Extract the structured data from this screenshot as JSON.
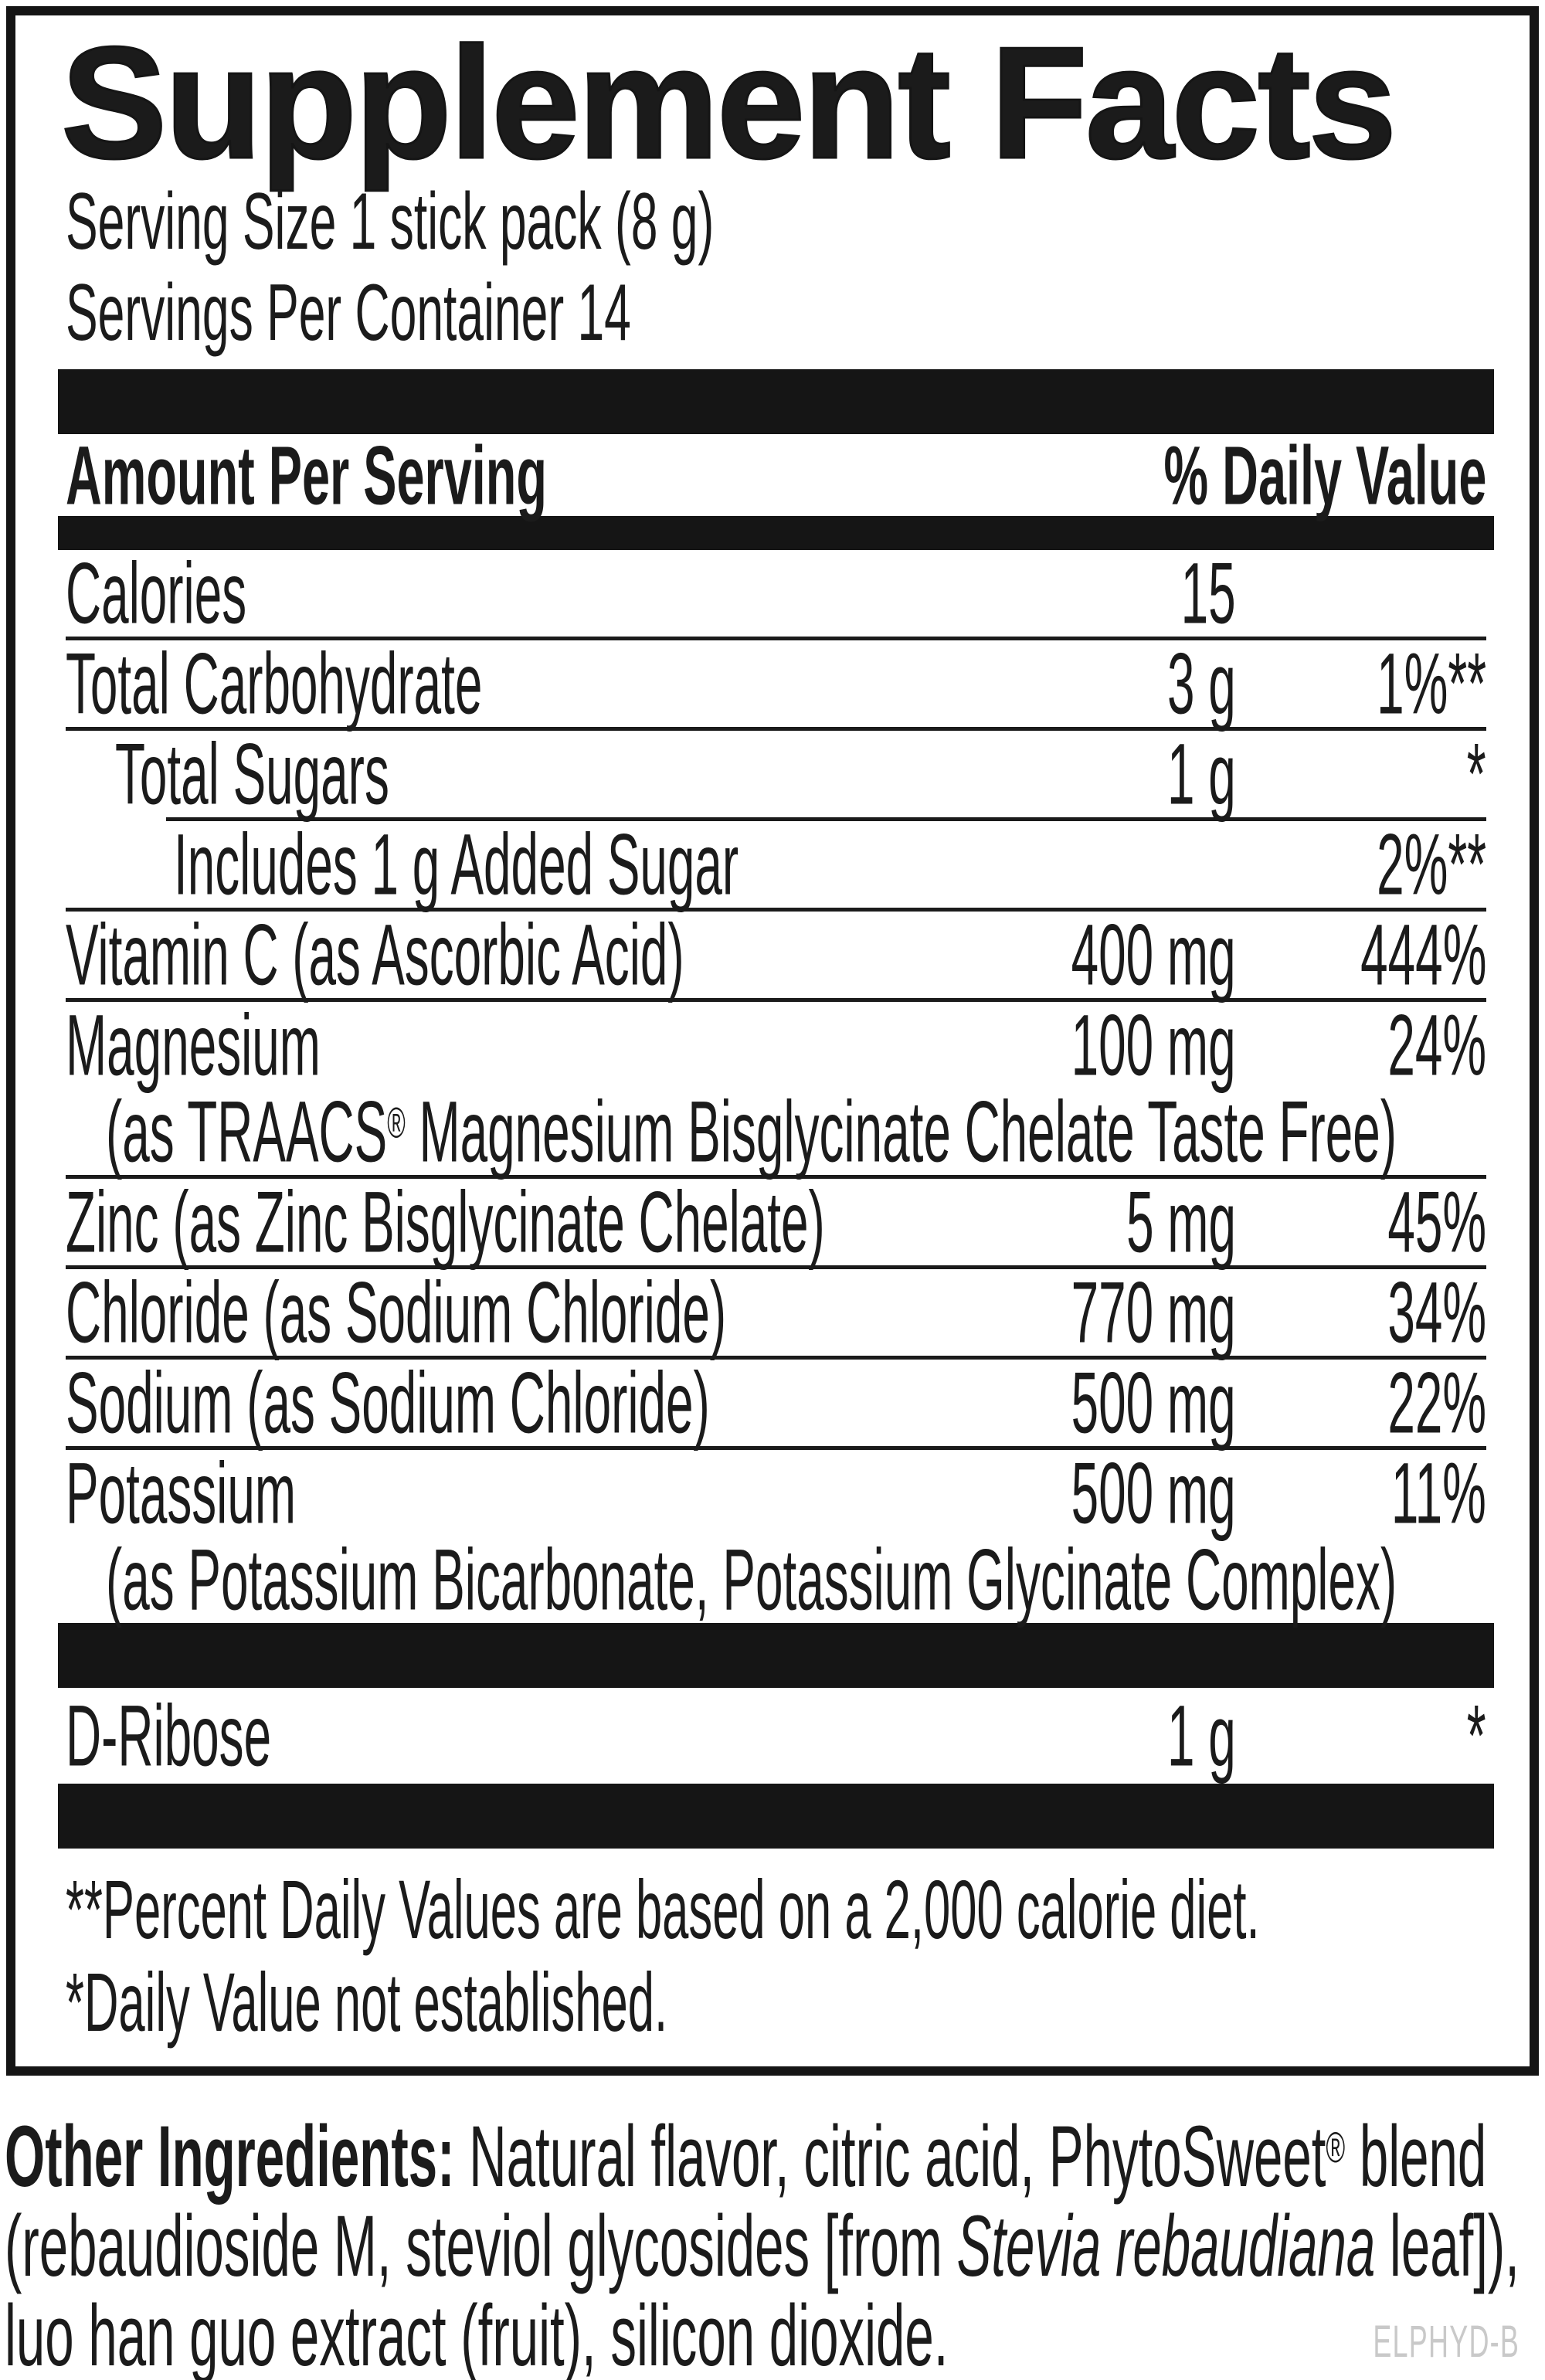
{
  "panel": {
    "title": "Supplement Facts",
    "serving_size": "Serving Size 1 stick pack (8 g)",
    "servings_per_container": "Servings Per Container 14",
    "amount_header": "Amount Per Serving",
    "dv_header": "% Daily Value",
    "rows": [
      {
        "name": "Calories",
        "amount": "15",
        "dv": "",
        "indent": 0,
        "sep": "none"
      },
      {
        "name": "Total Carbohydrate",
        "amount": "3 g",
        "dv": "1%**",
        "indent": 0,
        "sep": "full"
      },
      {
        "name": "Total Sugars",
        "amount": "1 g",
        "dv": "*",
        "indent": 1,
        "sep": "full"
      },
      {
        "name": "Includes 1 g Added Sugar",
        "amount": "",
        "dv": "2%**",
        "indent": 2,
        "sep": "indent2"
      },
      {
        "name": "Vitamin C (as Ascorbic Acid)",
        "amount": "400 mg",
        "dv": "444%",
        "indent": 0,
        "sep": "full"
      },
      {
        "name": "Magnesium",
        "amount": "100 mg",
        "dv": "24%",
        "indent": 0,
        "sep": "full",
        "sub": [
          {
            "t": "(as TRAACS"
          },
          {
            "t": "®",
            "sup": true
          },
          {
            "t": " Magnesium Bisglycinate Chelate Taste Free)"
          }
        ]
      },
      {
        "name": "Zinc (as Zinc Bisglycinate Chelate)",
        "amount": "5 mg",
        "dv": "45%",
        "indent": 0,
        "sep": "full"
      },
      {
        "name": "Chloride (as Sodium Chloride)",
        "amount": "770 mg",
        "dv": "34%",
        "indent": 0,
        "sep": "full"
      },
      {
        "name": "Sodium (as Sodium Chloride)",
        "amount": "500 mg",
        "dv": "22%",
        "indent": 0,
        "sep": "full"
      },
      {
        "name": "Potassium",
        "amount": "500 mg",
        "dv": "11%",
        "indent": 0,
        "sep": "full",
        "sub": [
          {
            "t": "(as Potassium Bicarbonate, Potassium Glycinate Complex)"
          }
        ]
      }
    ],
    "d_ribose": {
      "name": "D-Ribose",
      "amount": "1 g",
      "dv": "*"
    },
    "footnotes": [
      "**Percent Daily Values are based on a 2,000 calorie diet.",
      "*Daily Value not established."
    ]
  },
  "other_ingredients": {
    "lines": [
      [
        {
          "t": "Other Ingredients: ",
          "b": true
        },
        {
          "t": "Natural flavor, citric acid, PhytoSweet"
        },
        {
          "t": "®",
          "sup": true
        },
        {
          "t": " blend"
        }
      ],
      [
        {
          "t": "(rebaudioside M, steviol glycosides [from "
        },
        {
          "t": "Stevia rebaudiana",
          "i": true
        },
        {
          "t": " leaf]),"
        }
      ],
      [
        {
          "t": "luo han guo extract (fruit), silicon dioxide."
        }
      ]
    ]
  },
  "code": "ELPHYD-B",
  "colors": {
    "ink": "#1b1b1b",
    "bar": "#151515",
    "code_gray": "#c9c9c9"
  }
}
